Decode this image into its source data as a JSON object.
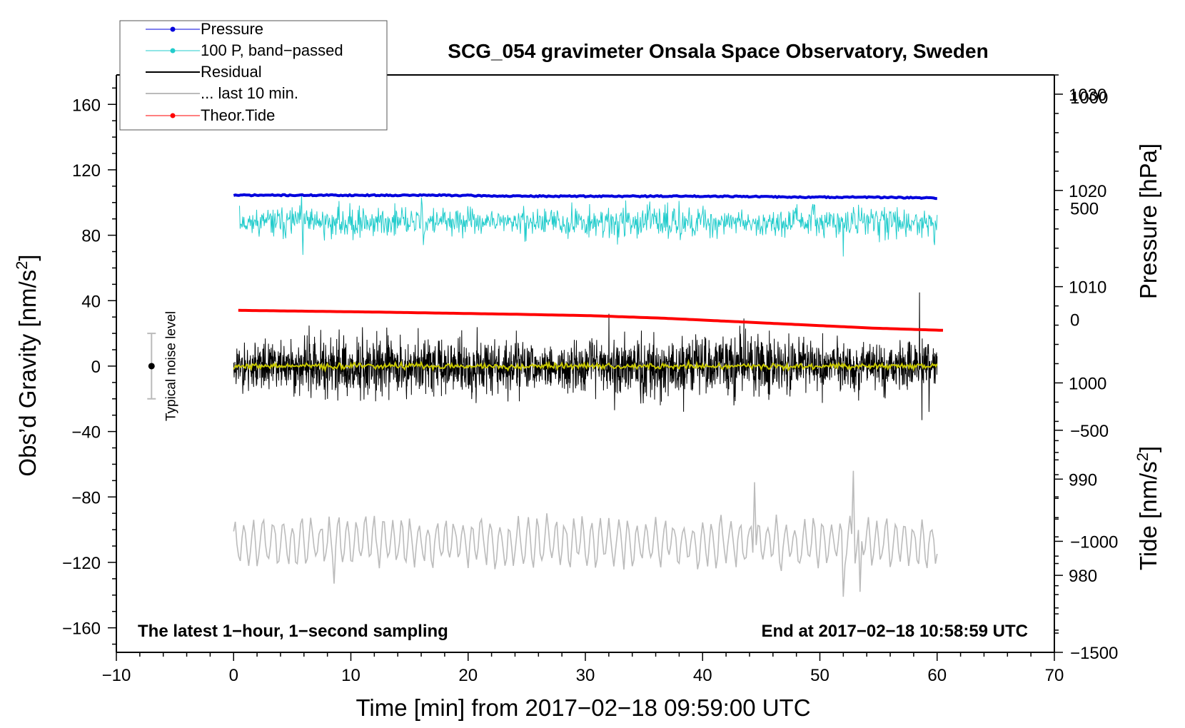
{
  "chart_data": {
    "type": "line",
    "title": "SCG_054 gravimeter Onsala Space Observatory, Sweden",
    "xlabel": "Time [min] from 2017−02−18 09:59:00 UTC",
    "ylabel_left": "Obs’d Gravity [nm/s²]",
    "ylabel_left_main": "Obs’d Gravity [nm/s",
    "ylabel_left_sup": "2",
    "ylabel_left_tail": "]",
    "ylabel_pressure": "Pressure [hPa]",
    "ylabel_tide": "Tide [nm/s²]",
    "ylabel_tide_main": "Tide [nm/s",
    "ylabel_tide_sup": "2",
    "ylabel_tide_tail": "]",
    "xlim": [
      -10,
      70
    ],
    "ylim": [
      -175,
      178
    ],
    "pressure_lim": [
      972,
      1032
    ],
    "tide_lim": [
      -1500,
      1100
    ],
    "x_ticks": [
      {
        "value": -10,
        "label": "−10"
      },
      {
        "value": 0,
        "label": "0"
      },
      {
        "value": 10,
        "label": "10"
      },
      {
        "value": 20,
        "label": "20"
      },
      {
        "value": 30,
        "label": "30"
      },
      {
        "value": 40,
        "label": "40"
      },
      {
        "value": 50,
        "label": "50"
      },
      {
        "value": 60,
        "label": "60"
      },
      {
        "value": 70,
        "label": "70"
      }
    ],
    "y_ticks": [
      {
        "value": 160,
        "label": "160"
      },
      {
        "value": 120,
        "label": "120"
      },
      {
        "value": 80,
        "label": "80"
      },
      {
        "value": 40,
        "label": "40"
      },
      {
        "value": 0,
        "label": "0"
      },
      {
        "value": -40,
        "label": "−40"
      },
      {
        "value": -80,
        "label": "−80"
      },
      {
        "value": -120,
        "label": "−120"
      },
      {
        "value": -160,
        "label": "−160"
      }
    ],
    "pressure_ticks": [
      {
        "value": 1030,
        "label": "1030"
      },
      {
        "value": 1020,
        "label": "1020"
      },
      {
        "value": 1010,
        "label": "1010"
      },
      {
        "value": 1000,
        "label": "1000"
      },
      {
        "value": 990,
        "label": "990"
      },
      {
        "value": 980,
        "label": "980"
      }
    ],
    "tide_ticks": [
      {
        "value": 1000,
        "label": "1000"
      },
      {
        "value": 500,
        "label": "500"
      },
      {
        "value": 0,
        "label": "0"
      },
      {
        "value": -500,
        "label": "−500"
      },
      {
        "value": -1000,
        "label": "−1000"
      },
      {
        "value": -1500,
        "label": "−1500"
      }
    ],
    "notes": {
      "left": "The latest 1−hour, 1−second sampling",
      "right": "End at 2017−02−18 10:58:59 UTC"
    },
    "noise_level": {
      "label": "Typical noise level",
      "x": -7,
      "center": 0,
      "low": -20,
      "high": 20
    },
    "legend": [
      {
        "label": "Pressure",
        "color": "#0000dd",
        "marker": true
      },
      {
        "label": "100 P, band−passed",
        "color": "#22cccc",
        "marker": true
      },
      {
        "label": "Residual",
        "color": "#000000",
        "marker": false
      },
      {
        "label": "... last 10 min.",
        "color": "#bbbbbb",
        "marker": false
      },
      {
        "label": "Theor.Tide",
        "color": "#ff0000",
        "marker": true
      }
    ],
    "series": [
      {
        "name": "Pressure",
        "color": "#0000dd",
        "axis": "pressure",
        "x_start": 0,
        "x_end": 60,
        "values": [
          1019.5,
          1019.5,
          1019.5,
          1019.5,
          1019.4,
          1019.4,
          1019.4,
          1019.4,
          1019.3,
          1019.3,
          1019.2
        ]
      },
      {
        "name": "100 P, band−passed",
        "color": "#22cccc",
        "axis": "gravity",
        "x_start": 0.5,
        "x_end": 60,
        "baseline": 88,
        "amplitude": 7,
        "extremes": [
          [
            0.5,
            98
          ],
          [
            5.8,
            105
          ],
          [
            5.9,
            68
          ],
          [
            16,
            103
          ],
          [
            16.2,
            74
          ],
          [
            38,
            101
          ],
          [
            52,
            67
          ],
          [
            59.5,
            91
          ],
          [
            59.8,
            74
          ]
        ]
      },
      {
        "name": "Residual",
        "color": "#000000",
        "axis": "gravity",
        "x_start": 0,
        "x_end": 60,
        "baseline": 0,
        "amplitude": 13,
        "extremes": [
          [
            32,
            32
          ],
          [
            58.5,
            45
          ],
          [
            58.7,
            -33
          ],
          [
            59.3,
            -28
          ],
          [
            32.5,
            -27
          ]
        ]
      },
      {
        "name": "Residual (smoothed)",
        "color": "#c8c800",
        "axis": "gravity",
        "x_start": 0,
        "x_end": 60,
        "baseline": 0,
        "amplitude": 1.5
      },
      {
        "name": "... last 10 min.",
        "color": "#bbbbbb",
        "axis": "gravity",
        "x_start": 0,
        "x_end": 60,
        "baseline": -108,
        "amplitude": 12,
        "extremes": [
          [
            44.5,
            -71
          ],
          [
            52.8,
            -64
          ],
          [
            52,
            -141
          ],
          [
            53.5,
            -138
          ],
          [
            8.6,
            -133
          ]
        ]
      },
      {
        "name": "Theor.Tide",
        "color": "#ff0000",
        "axis": "tide",
        "x_start": 0.4,
        "x_end": 60.5,
        "values": [
          40,
          36,
          32,
          27,
          22,
          16,
          5,
          -10,
          -25,
          -40,
          -50
        ]
      }
    ]
  }
}
